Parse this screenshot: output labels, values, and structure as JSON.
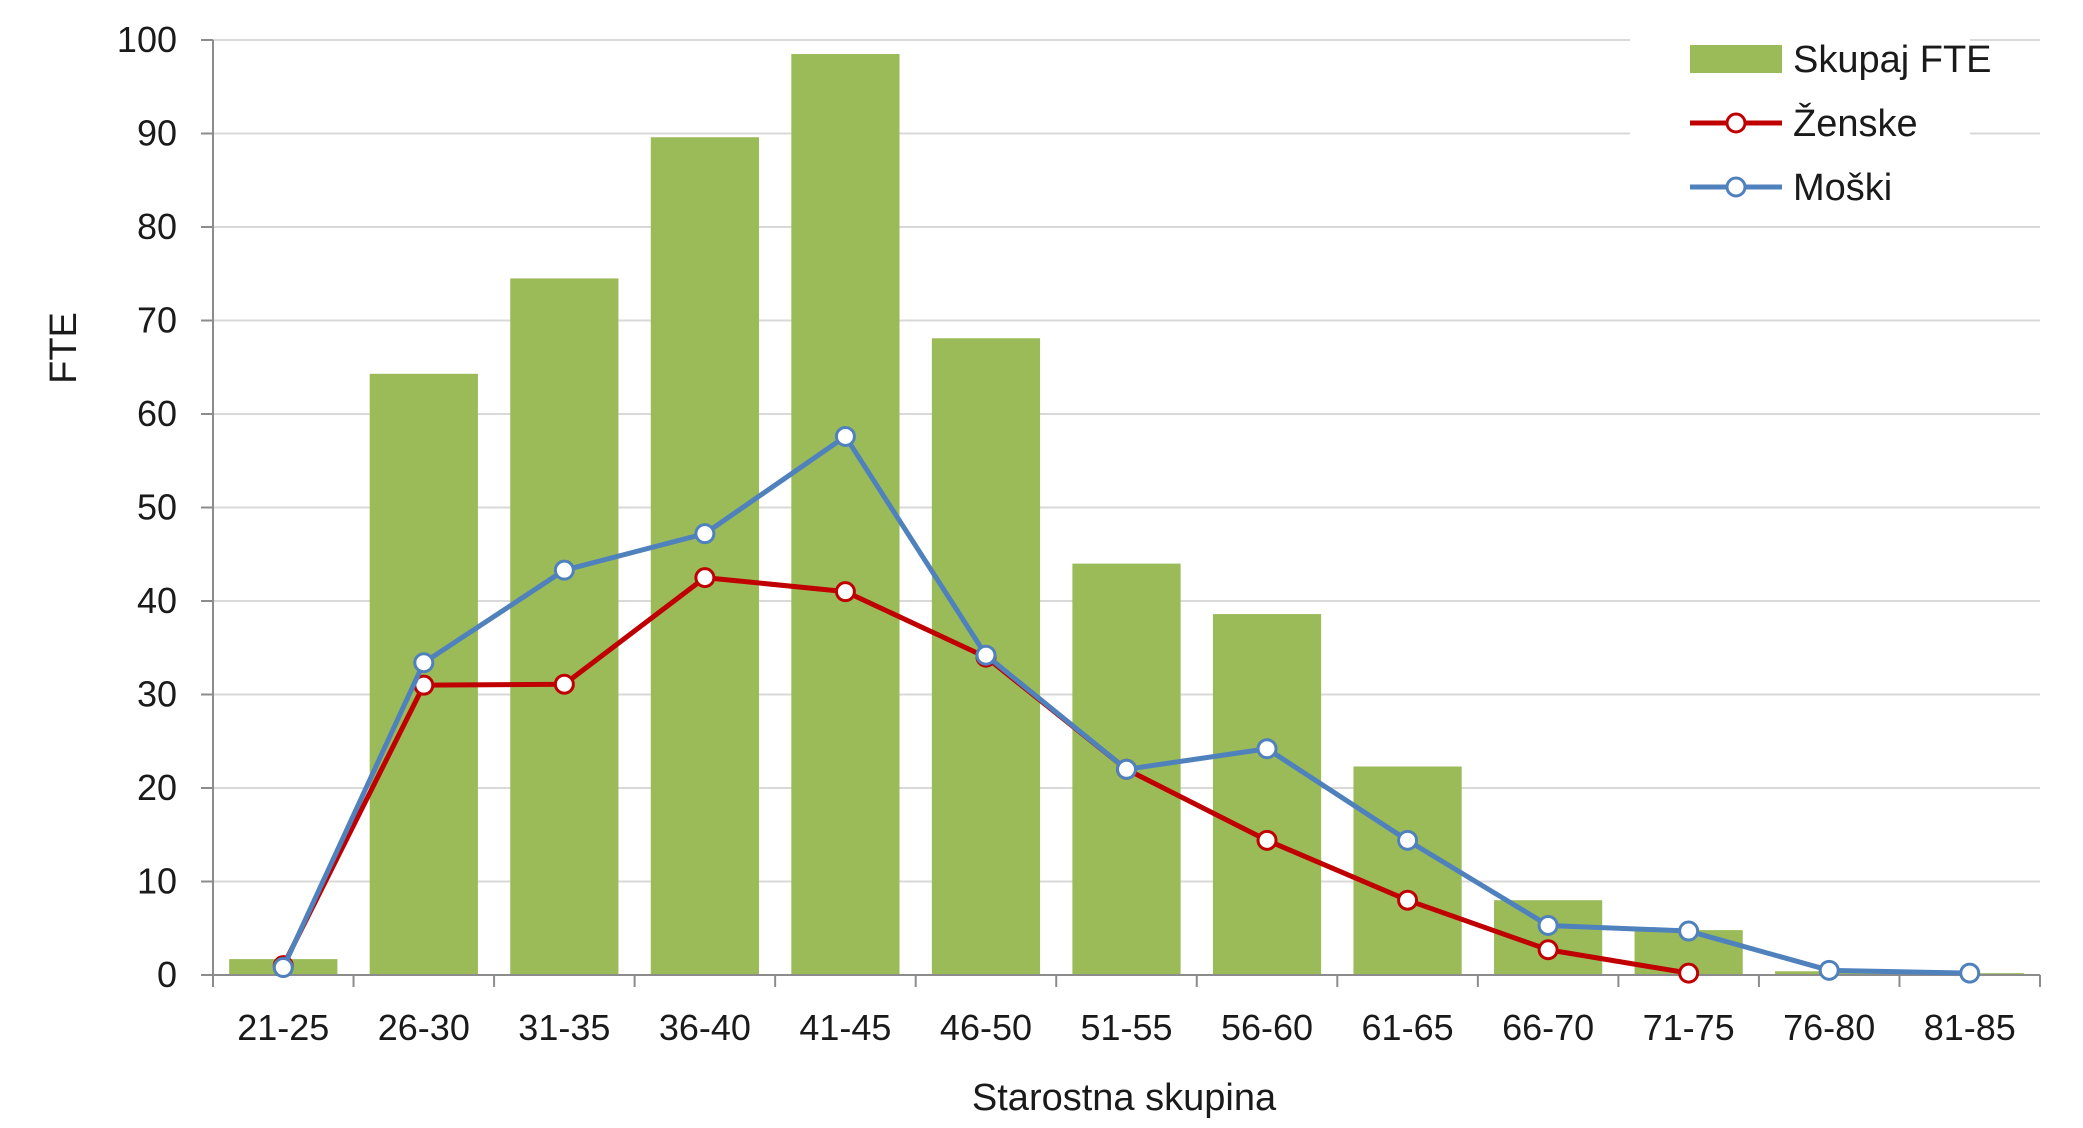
{
  "chart_data": {
    "type": "bar",
    "categories": [
      "21-25",
      "26-30",
      "31-35",
      "36-40",
      "41-45",
      "46-50",
      "51-55",
      "56-60",
      "61-65",
      "66-70",
      "71-75",
      "76-80",
      "81-85"
    ],
    "series": [
      {
        "name": "Skupaj FTE",
        "kind": "bar",
        "color": "#9bbb59",
        "values": [
          1.7,
          64.3,
          74.5,
          89.6,
          98.5,
          68.1,
          44.0,
          38.6,
          22.3,
          8.0,
          4.8,
          0.4,
          0.2
        ]
      },
      {
        "name": "Ženske",
        "kind": "line",
        "color": "#c00000",
        "values": [
          1.0,
          31.0,
          31.1,
          42.5,
          41.0,
          34.0,
          22.0,
          14.4,
          8.0,
          2.7,
          0.2,
          null,
          null
        ]
      },
      {
        "name": "Moški",
        "kind": "line",
        "color": "#4f81bd",
        "values": [
          0.8,
          33.4,
          43.3,
          47.2,
          57.6,
          34.2,
          22.0,
          24.2,
          14.4,
          5.3,
          4.7,
          0.5,
          0.2
        ]
      }
    ],
    "xlabel": "Starostna skupina",
    "ylabel": "FTE",
    "ylim": [
      0,
      100
    ],
    "yticks": [
      "0",
      "10",
      "20",
      "30",
      "40",
      "50",
      "60",
      "70",
      "80",
      "90",
      "100"
    ],
    "grid": true,
    "legend_position": "top-right"
  }
}
